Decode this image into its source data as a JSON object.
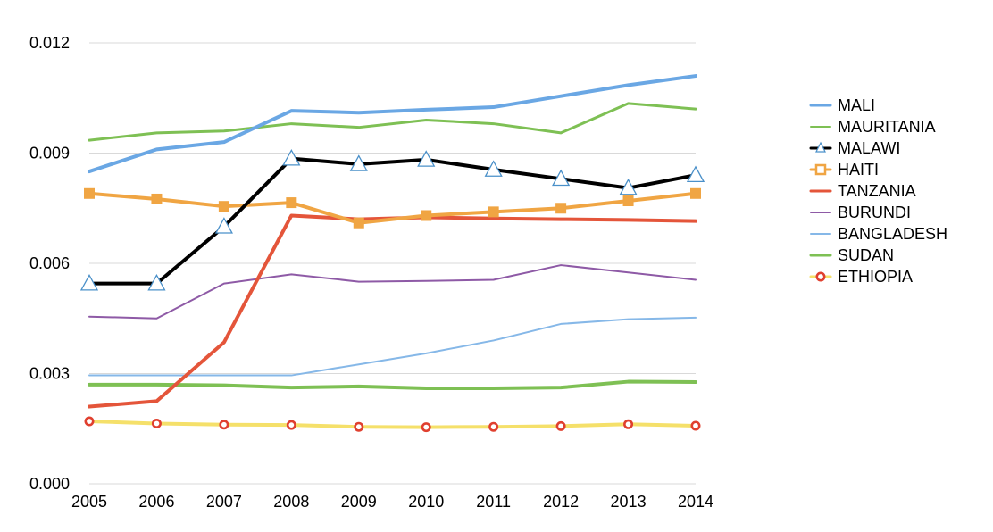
{
  "chart_data": {
    "type": "line",
    "title": "",
    "xlabel": "",
    "ylabel": "",
    "x": [
      "2005",
      "2006",
      "2007",
      "2008",
      "2009",
      "2010",
      "2011",
      "2012",
      "2013",
      "2014"
    ],
    "ylim": [
      0,
      0.012
    ],
    "yticks": [
      0,
      0.003,
      0.006,
      0.009,
      0.012
    ],
    "ytick_labels": [
      "0.000",
      "0.003",
      "0.006",
      "0.009",
      "0.012"
    ],
    "grid": true,
    "legend_position": "right",
    "series": [
      {
        "name": "MALI",
        "color": "#6aa7e4",
        "width": 4,
        "marker": "none",
        "values": [
          0.0085,
          0.0091,
          0.0093,
          0.01015,
          0.0101,
          0.01018,
          0.01025,
          0.01055,
          0.01085,
          0.0111
        ]
      },
      {
        "name": "MAURITANIA",
        "color": "#7ec054",
        "width": 3,
        "marker": "none",
        "values": [
          0.00935,
          0.00955,
          0.0096,
          0.0098,
          0.0097,
          0.0099,
          0.0098,
          0.00955,
          0.01035,
          0.0102
        ]
      },
      {
        "name": "MALAWI",
        "color": "#000000",
        "width": 4,
        "marker": "triangle",
        "values": [
          0.00545,
          0.00545,
          0.007,
          0.00885,
          0.0087,
          0.00882,
          0.00855,
          0.0083,
          0.00805,
          0.0084
        ]
      },
      {
        "name": "HAITI",
        "color": "#f0a543",
        "width": 4,
        "marker": "square",
        "values": [
          0.0079,
          0.00775,
          0.00755,
          0.00765,
          0.0071,
          0.0073,
          0.0074,
          0.0075,
          0.0077,
          0.0079
        ]
      },
      {
        "name": "TANZANIA",
        "color": "#e4553a",
        "width": 4,
        "marker": "none",
        "values": [
          0.0021,
          0.00225,
          0.00385,
          0.0073,
          0.0072,
          0.00725,
          0.00722,
          0.0072,
          0.00718,
          0.00715
        ]
      },
      {
        "name": "BURUNDI",
        "color": "#8e5aa6",
        "width": 2,
        "marker": "none",
        "values": [
          0.00455,
          0.0045,
          0.00545,
          0.0057,
          0.0055,
          0.00552,
          0.00555,
          0.00595,
          0.00575,
          0.00555
        ]
      },
      {
        "name": "BANGLADESH",
        "color": "#86b8e8",
        "width": 2,
        "marker": "none",
        "values": [
          0.00295,
          0.00295,
          0.00295,
          0.00295,
          0.00325,
          0.00355,
          0.0039,
          0.00435,
          0.00448,
          0.00452
        ]
      },
      {
        "name": "SUDAN",
        "color": "#7ec054",
        "width": 4,
        "marker": "none",
        "values": [
          0.0027,
          0.0027,
          0.00268,
          0.00262,
          0.00265,
          0.0026,
          0.0026,
          0.00262,
          0.00278,
          0.00277
        ]
      },
      {
        "name": "ETHIOPIA",
        "color": "#f5e06a",
        "width": 4,
        "marker": "circle",
        "marker_color": "#e0402f",
        "values": [
          0.0017,
          0.00164,
          0.00161,
          0.0016,
          0.00155,
          0.00154,
          0.00155,
          0.00157,
          0.00162,
          0.00158
        ]
      }
    ]
  }
}
